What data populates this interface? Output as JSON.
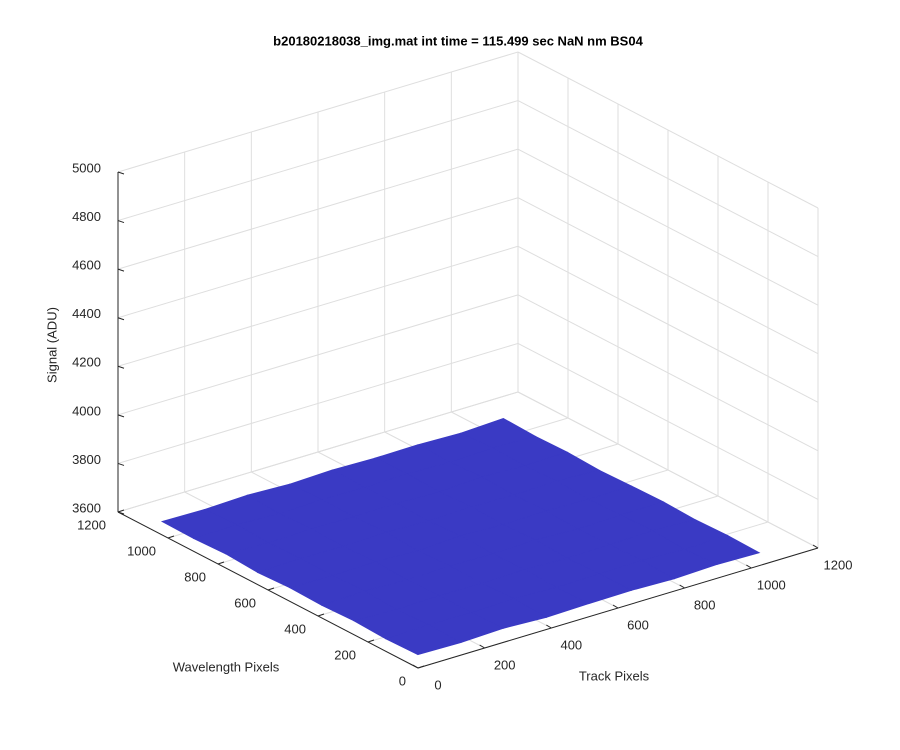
{
  "chart_data": {
    "type": "surface",
    "title": "b20180218038_img.mat int time = 115.499 sec  NaN nm BS04",
    "xlabel": "Track Pixels",
    "ylabel": "Wavelength Pixels",
    "zlabel": "Signal (ADU)",
    "xlim": [
      0,
      1200
    ],
    "ylim": [
      0,
      1200
    ],
    "zlim": [
      3600,
      5000
    ],
    "xticks": [
      0,
      200,
      400,
      600,
      800,
      1000,
      1200
    ],
    "yticks": [
      0,
      200,
      400,
      600,
      800,
      1000,
      1200
    ],
    "zticks": [
      3600,
      3800,
      4000,
      4200,
      4400,
      4600,
      4800,
      5000
    ],
    "grid": true,
    "color": "#3a3ac4",
    "x": [
      0,
      128,
      256,
      384,
      512,
      640,
      768,
      896,
      1024
    ],
    "y": [
      0,
      128,
      256,
      384,
      512,
      640,
      768,
      896,
      1024
    ],
    "z": [
      [
        3655,
        3652,
        3658,
        3650,
        3654,
        3656,
        3651,
        3657,
        3653
      ],
      [
        3651,
        3656,
        3653,
        3659,
        3652,
        3655,
        3658,
        3650,
        3656
      ],
      [
        3657,
        3650,
        3655,
        3652,
        3657,
        3651,
        3654,
        3659,
        3652
      ],
      [
        3652,
        3658,
        3651,
        3656,
        3653,
        3658,
        3650,
        3655,
        3657
      ],
      [
        3656,
        3653,
        3657,
        3650,
        3659,
        3652,
        3656,
        3651,
        3654
      ],
      [
        3650,
        3655,
        3652,
        3658,
        3651,
        3657,
        3653,
        3658,
        3650
      ],
      [
        3658,
        3651,
        3656,
        3653,
        3655,
        3650,
        3659,
        3652,
        3656
      ],
      [
        3653,
        3657,
        3650,
        3655,
        3652,
        3656,
        3651,
        3657,
        3653
      ],
      [
        3655,
        3652,
        3658,
        3651,
        3657,
        3653,
        3655,
        3650,
        3658
      ]
    ]
  }
}
